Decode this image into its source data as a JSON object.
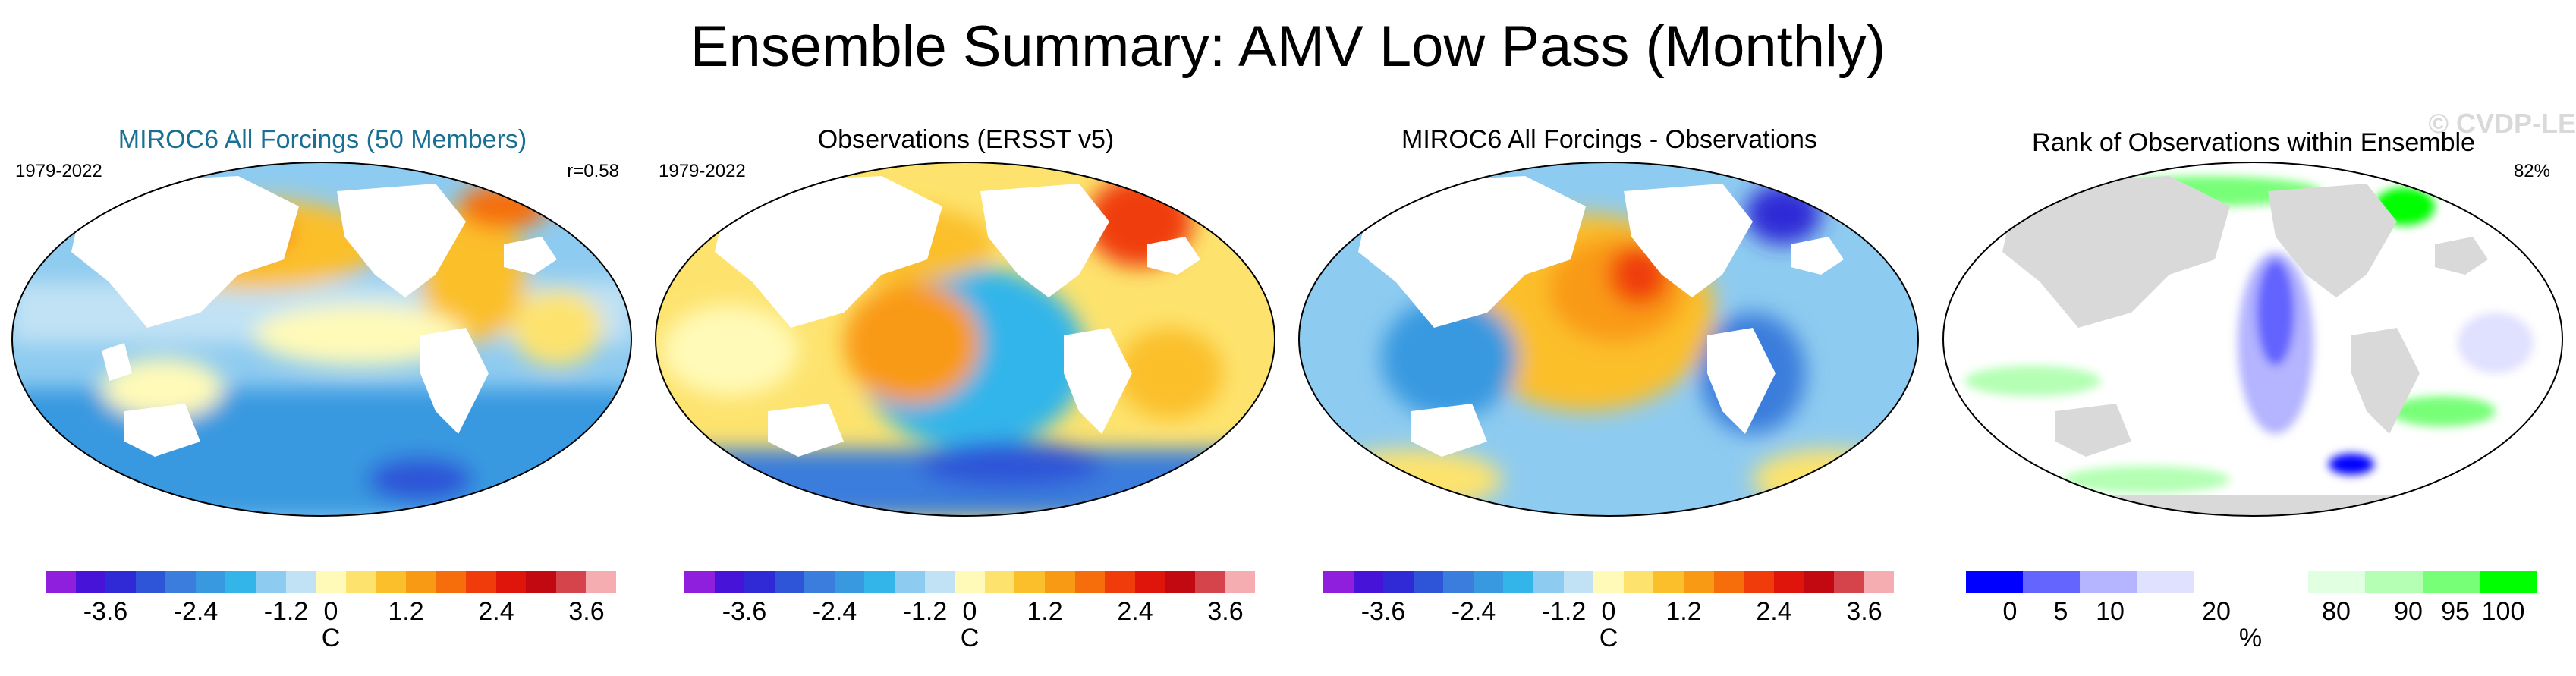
{
  "title": "Ensemble Summary: AMV Low Pass (Monthly)",
  "watermark": "© CVDP-LE",
  "panels": [
    {
      "title": "MIROC6 All Forcings (50 Members)",
      "period": "1979-2022",
      "stat": "r=0.58"
    },
    {
      "title": "Observations (ERSST v5)",
      "period": "1979-2022",
      "stat": ""
    },
    {
      "title": "MIROC6 All Forcings - Observations",
      "period": "",
      "stat": ""
    },
    {
      "title": "Rank of Observations within Ensemble",
      "period": "",
      "stat": "82%"
    }
  ],
  "temperature_colorbar": {
    "colors": [
      "#8f1fdc",
      "#4713d8",
      "#2f2ad6",
      "#2e55d8",
      "#3a7ddc",
      "#3899e0",
      "#33b5ea",
      "#8ecbf0",
      "#c1e2f4",
      "#fffab8",
      "#fde36e",
      "#fbbf2b",
      "#f99a14",
      "#f66e0c",
      "#f03c0a",
      "#df140a",
      "#c20810",
      "#d4444a",
      "#f6adb2"
    ],
    "ticks": [
      "-3.6",
      "-2.4",
      "-1.2",
      "0",
      "1.2",
      "2.4",
      "3.6"
    ],
    "unit": "C"
  },
  "rank_colorbar": {
    "colors": [
      "#0000ff",
      "#6464ff",
      "#b4b4ff",
      "#e0e0ff",
      "#ffffff",
      "#e1ffe1",
      "#b4ffb4",
      "#78ff78",
      "#00ff00"
    ],
    "ticks": [
      "0",
      "5",
      "10",
      "20",
      "80",
      "90",
      "95",
      "100"
    ],
    "unit": "%"
  }
}
